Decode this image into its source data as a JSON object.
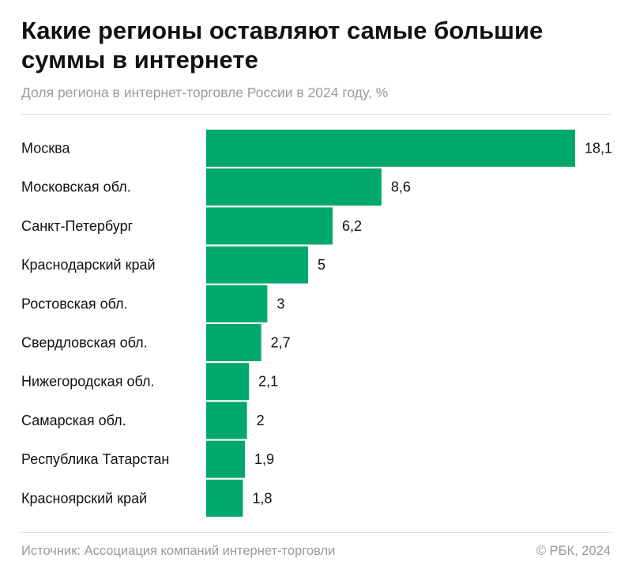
{
  "header": {
    "title": "Какие регионы оставляют самые большие суммы в интернете",
    "subtitle": "Доля региона в интернет-торговле России в 2024 году, %"
  },
  "footer": {
    "source": "Источник: Ассоциация компаний интернет-торговли",
    "copyright": "© РБК, 2024"
  },
  "colors": {
    "bar": "#00a86b",
    "text": "#111111",
    "muted": "#9a9a9a"
  },
  "chart_data": {
    "type": "bar",
    "orientation": "horizontal",
    "title": "Какие регионы оставляют самые большие суммы в интернете",
    "subtitle": "Доля региона в интернет-торговле России в 2024 году, %",
    "categories": [
      "Москва",
      "Московская обл.",
      "Санкт-Петербург",
      "Краснодарский край",
      "Ростовская обл.",
      "Свердловская обл.",
      "Нижегородская обл.",
      "Самарская обл.",
      "Республика Татарстан",
      "Красноярский край"
    ],
    "values": [
      18.1,
      8.6,
      6.2,
      5,
      3,
      2.7,
      2.1,
      2,
      1.9,
      1.8
    ],
    "value_labels": [
      "18,1",
      "8,6",
      "6,2",
      "5",
      "3",
      "2,7",
      "2,1",
      "2",
      "1,9",
      "1,8"
    ],
    "xlim": [
      0,
      18.1
    ],
    "xlabel": "",
    "ylabel": "",
    "grid": false,
    "legend": "none"
  }
}
